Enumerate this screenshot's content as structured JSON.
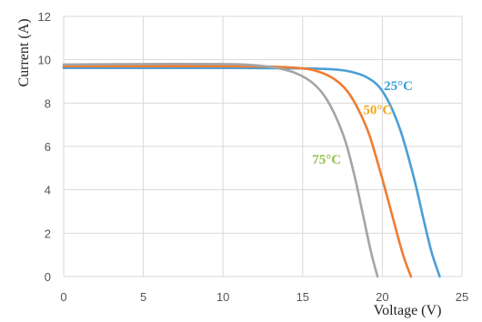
{
  "chart_data": {
    "type": "line",
    "title": "",
    "xlabel": "Voltage (V)",
    "ylabel": "Current (A)",
    "xlim": [
      0,
      25
    ],
    "ylim": [
      0,
      12
    ],
    "xticks": [
      0,
      5,
      10,
      15,
      20,
      25
    ],
    "yticks": [
      0,
      2,
      4,
      6,
      8,
      10,
      12
    ],
    "grid": true,
    "legend": "none",
    "series": [
      {
        "label": "25°C",
        "color": "#4a9fd6",
        "label_color": "#3aa0d8",
        "x": [
          0,
          5,
          10,
          15,
          17,
          18,
          19,
          19.8,
          20.5,
          21.2,
          22,
          22.6,
          23.1,
          23.6
        ],
        "y": [
          9.62,
          9.62,
          9.62,
          9.6,
          9.55,
          9.45,
          9.2,
          8.75,
          7.9,
          6.6,
          4.5,
          2.6,
          1.1,
          0
        ]
      },
      {
        "label": "50°C",
        "color": "#ef7d31",
        "label_color": "#f0a81a",
        "x": [
          0,
          5,
          10,
          13,
          15,
          16,
          17,
          17.8,
          18.5,
          19.2,
          20,
          20.7,
          21.3,
          21.8
        ],
        "y": [
          9.7,
          9.7,
          9.7,
          9.68,
          9.6,
          9.45,
          9.1,
          8.55,
          7.7,
          6.5,
          4.5,
          2.6,
          1.0,
          0
        ]
      },
      {
        "label": "75°C",
        "color": "#a5a5a5",
        "label_color": "#8fc250",
        "x": [
          0,
          5,
          10,
          12,
          13.5,
          14.5,
          15.5,
          16.3,
          17,
          17.7,
          18.3,
          18.8,
          19.3,
          19.7
        ],
        "y": [
          9.78,
          9.8,
          9.8,
          9.75,
          9.6,
          9.4,
          9.0,
          8.4,
          7.5,
          6.2,
          4.5,
          2.8,
          1.1,
          0
        ]
      }
    ]
  }
}
